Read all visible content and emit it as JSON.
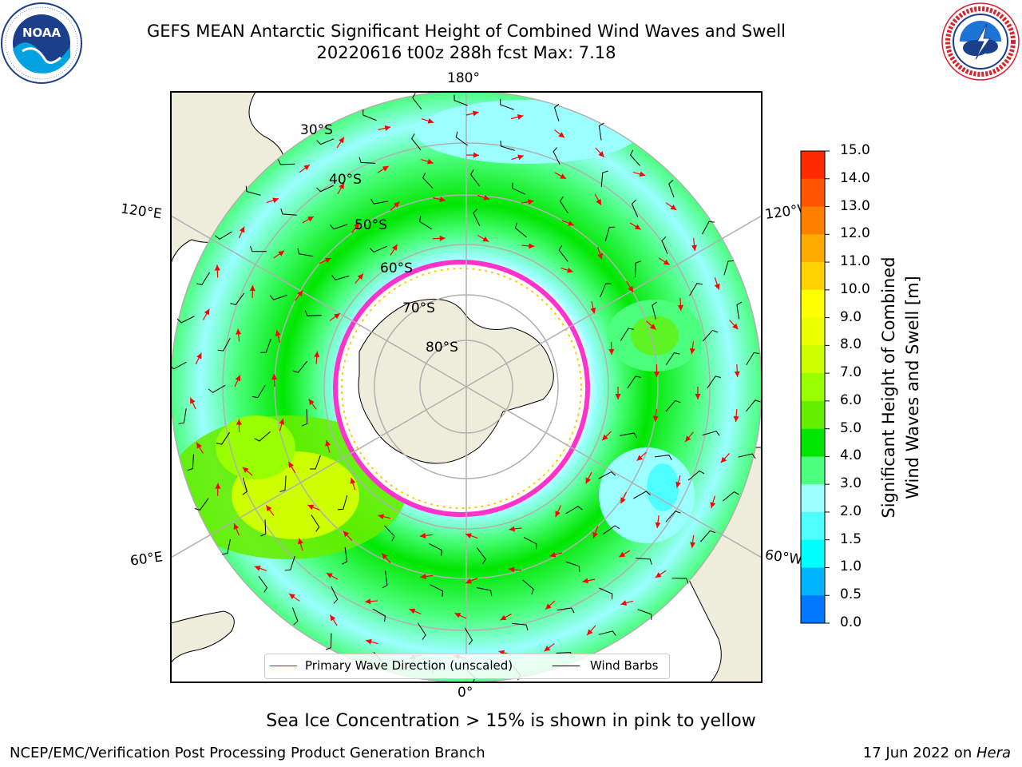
{
  "header": {
    "title_line1": "GEFS MEAN Antarctic Significant Height of Combined Wind Waves and Swell",
    "title_line2": "20220616 t00z 288h fcst   Max: 7.18"
  },
  "logos": {
    "left": {
      "name": "noaa-logo",
      "text": "NOAA",
      "ring_text": "NATIONAL OCEANIC AND ATMOSPHERIC ADMINISTRATION · U.S. DEPARTMENT OF COMMERCE"
    },
    "right": {
      "name": "nws-logo",
      "ring_text": "NATIONAL WEATHER SERVICE"
    }
  },
  "map": {
    "projection": "south-polar-stereographic",
    "longitude_labels": {
      "top": "180°",
      "bottom": "0°",
      "upper_left": "120°E",
      "upper_right": "120°W",
      "lower_left": "60°E",
      "lower_right": "60°W"
    },
    "latitude_labels": [
      "30°S",
      "40°S",
      "50°S",
      "60°S",
      "70°S",
      "80°S"
    ],
    "colors": {
      "land": "#eeecdb",
      "ocean_background": "#ffffff",
      "gridline": "#b0b0b0",
      "wave_arrow": "#ff0000",
      "wind_barb": "#000000",
      "sea_ice": "#ff33cc"
    }
  },
  "legend": {
    "wave_label": "Primary Wave Direction (unscaled)",
    "barb_label": "Wind Barbs"
  },
  "colorbar": {
    "label_line1": "Significant Height of Combined",
    "label_line2": "Wind Waves and Swell [m]",
    "ticks": [
      "15.0",
      "14.0",
      "13.0",
      "12.0",
      "11.0",
      "10.0",
      "9.0",
      "8.0",
      "7.0",
      "6.0",
      "5.0",
      "4.0",
      "3.0",
      "2.0",
      "1.5",
      "1.0",
      "0.5",
      "0.0"
    ],
    "colors": [
      "#ff0000",
      "#ff2a00",
      "#ff5500",
      "#ff8000",
      "#ffaa00",
      "#ffd200",
      "#ffff00",
      "#eaff00",
      "#ccff00",
      "#99ff00",
      "#66ee00",
      "#00e600",
      "#4bff7d",
      "#9bffff",
      "#4dffff",
      "#00ffff",
      "#00b3ff",
      "#0077ff",
      "#0000ff"
    ]
  },
  "notes": {
    "sea_ice": "Sea Ice Concentration > 15% is shown in pink to yellow"
  },
  "footer": {
    "left": "NCEP/EMC/Verification Post Processing Product Generation Branch",
    "right_date": "17 Jun 2022 on ",
    "right_host": "Hera"
  }
}
